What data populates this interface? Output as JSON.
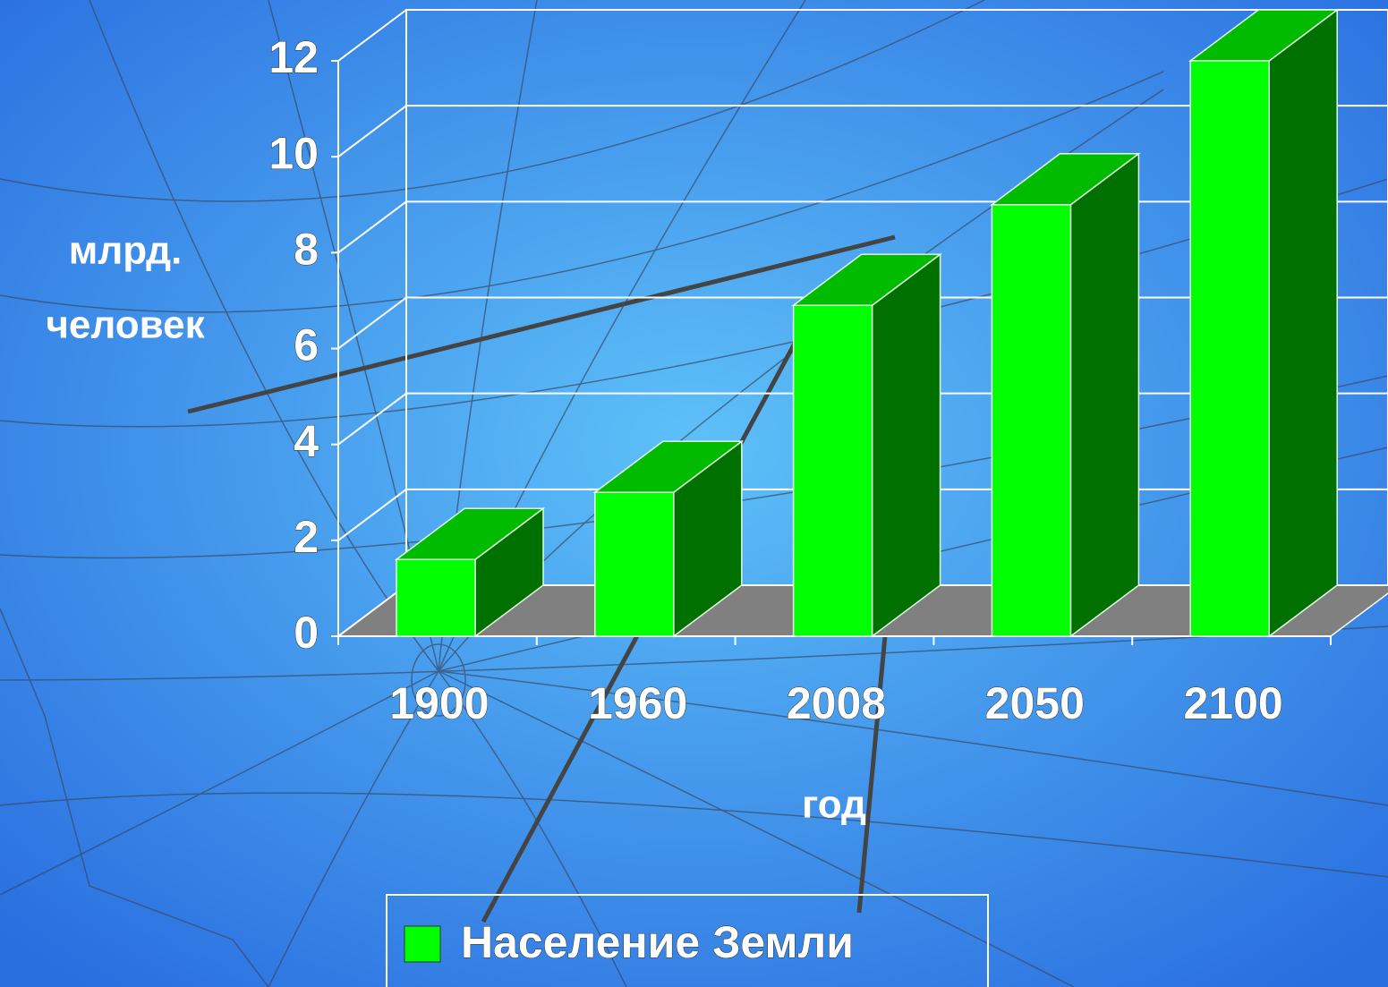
{
  "chart_data": {
    "type": "bar3d",
    "y_label": [
      "млрд.",
      "человек"
    ],
    "x_label": "год",
    "categories": [
      "1900",
      "1960",
      "2008",
      "2050",
      "2100"
    ],
    "series": [
      {
        "name": "Население Земли",
        "color": "#00ff00",
        "values": [
          1.6,
          3.0,
          6.9,
          9.0,
          12.0
        ]
      }
    ],
    "ylim": [
      0,
      12
    ],
    "yticks": [
      0,
      2,
      4,
      6,
      8,
      10,
      12
    ],
    "grid": true
  }
}
